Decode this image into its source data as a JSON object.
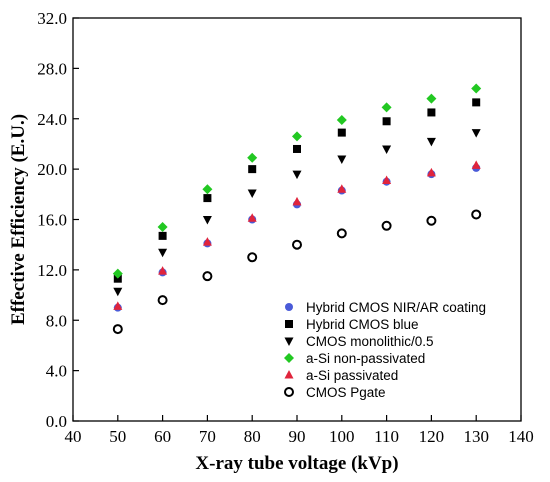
{
  "chart_data": {
    "type": "scatter",
    "xlabel": "X-ray tube voltage (kVp)",
    "ylabel": "Effective Efficiency (E.U.)",
    "xlim": [
      40,
      140
    ],
    "ylim": [
      0,
      32
    ],
    "xticks": [
      "40",
      "50",
      "60",
      "70",
      "80",
      "90",
      "100",
      "110",
      "120",
      "130",
      "140"
    ],
    "yticks": [
      "0.0",
      "4.0",
      "8.0",
      "12.0",
      "16.0",
      "20.0",
      "24.0",
      "28.0",
      "32.0"
    ],
    "xtick_values": [
      40,
      50,
      60,
      70,
      80,
      90,
      100,
      110,
      120,
      130,
      140
    ],
    "ytick_values": [
      0,
      4,
      8,
      12,
      16,
      20,
      24,
      28,
      32
    ],
    "grid": false,
    "legend_position": "bottom-right",
    "x": [
      50,
      60,
      70,
      80,
      90,
      100,
      110,
      120,
      130
    ],
    "series": [
      {
        "name": "Hybrid CMOS NIR/AR coating",
        "marker": "circle",
        "color": "#4a5bd8",
        "values": [
          9.0,
          11.8,
          14.1,
          16.0,
          17.2,
          18.3,
          19.0,
          19.6,
          20.1
        ]
      },
      {
        "name": "Hybrid CMOS blue",
        "marker": "square",
        "color": "#000000",
        "values": [
          11.3,
          14.7,
          17.7,
          20.0,
          21.6,
          22.9,
          23.8,
          24.5,
          25.3
        ]
      },
      {
        "name": "CMOS monolithic/0.5",
        "marker": "triangle-down",
        "color": "#000000",
        "values": [
          10.3,
          13.4,
          16.0,
          18.1,
          19.6,
          20.8,
          21.6,
          22.2,
          22.9
        ]
      },
      {
        "name": "a-Si non-passivated",
        "marker": "diamond",
        "color": "#22c822",
        "values": [
          11.7,
          15.4,
          18.4,
          20.9,
          22.6,
          23.9,
          24.9,
          25.6,
          26.4
        ]
      },
      {
        "name": "a-Si passivated",
        "marker": "triangle-up",
        "color": "#e0243c",
        "values": [
          9.1,
          11.9,
          14.2,
          16.1,
          17.4,
          18.4,
          19.1,
          19.7,
          20.3
        ]
      },
      {
        "name": "CMOS Pgate",
        "marker": "open-circle",
        "color": "#000000",
        "values": [
          7.3,
          9.6,
          11.5,
          13.0,
          14.0,
          14.9,
          15.5,
          15.9,
          16.4
        ]
      }
    ]
  }
}
